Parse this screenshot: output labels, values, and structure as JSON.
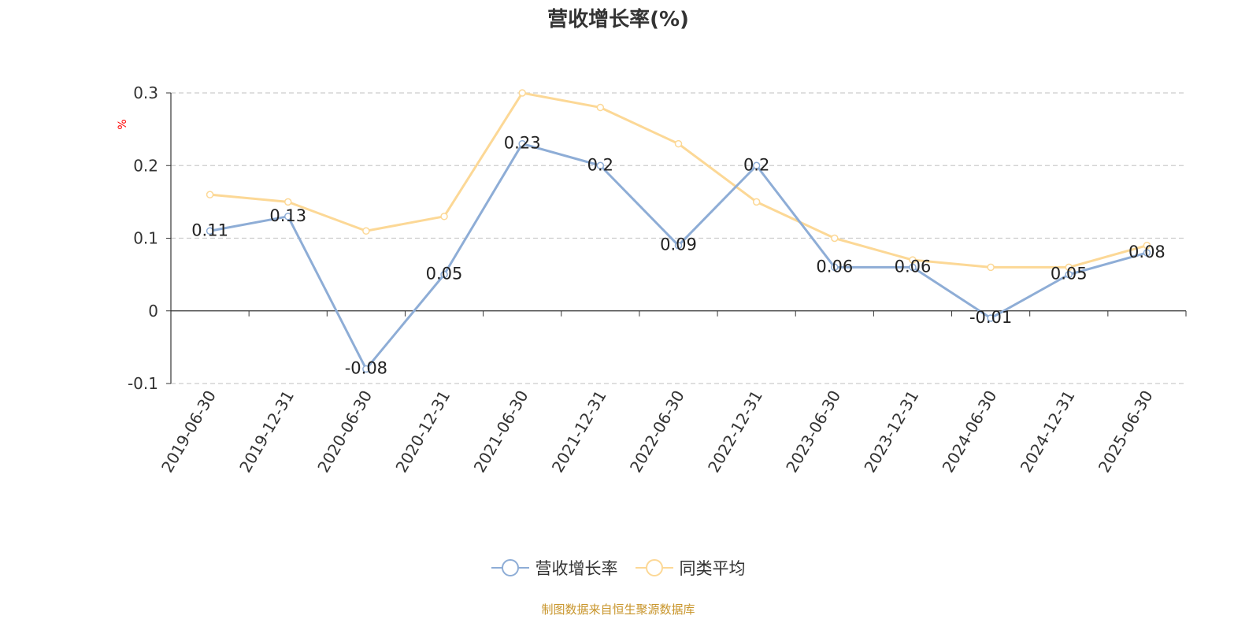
{
  "chart_data": {
    "type": "line",
    "title": "营收增长率(%)",
    "ylabel": "%",
    "ylim": [
      -0.1,
      0.3
    ],
    "yticks": [
      -0.1,
      0,
      0.1,
      0.2,
      0.3
    ],
    "ytick_labels": [
      "-0.1",
      "0",
      "0.1",
      "0.2",
      "0.3"
    ],
    "grid": true,
    "legend": "bottom-center",
    "categories": [
      "2019-06-30",
      "2019-12-31",
      "2020-06-30",
      "2020-12-31",
      "2021-06-30",
      "2021-12-31",
      "2022-06-30",
      "2022-12-31",
      "2023-06-30",
      "2023-12-31",
      "2024-06-30",
      "2024-12-31",
      "2025-06-30"
    ],
    "series": [
      {
        "name": "营收增长率",
        "color": "#8eadd6",
        "values": [
          0.11,
          0.13,
          -0.08,
          0.05,
          0.23,
          0.2,
          0.09,
          0.2,
          0.06,
          0.06,
          -0.01,
          0.05,
          0.08
        ],
        "labels": [
          "0.11",
          "0.13",
          "-0.08",
          "0.05",
          "0.23",
          "0.2",
          "0.09",
          "0.2",
          "0.06",
          "0.06",
          "-0.01",
          "0.05",
          "0.08"
        ]
      },
      {
        "name": "同类平均",
        "color": "#fcd896",
        "values": [
          0.16,
          0.15,
          0.11,
          0.13,
          0.3,
          0.28,
          0.23,
          0.15,
          0.1,
          0.07,
          0.06,
          0.06,
          0.09
        ]
      }
    ]
  },
  "footer": {
    "text": "制图数据来自恒生聚源数据库",
    "color": "#c8952b"
  },
  "colors": {
    "axis": "#333333",
    "grid": "#cccccc",
    "ylabel": "#ff0000"
  }
}
